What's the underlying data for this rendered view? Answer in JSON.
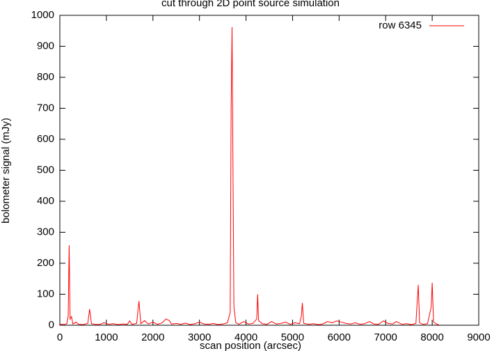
{
  "chart_data": {
    "type": "line",
    "title": "cut through 2D point source simulation",
    "xlabel": "scan position (arcsec)",
    "ylabel": "bolometer signal (mJy)",
    "x": [
      0,
      50,
      100,
      150,
      180,
      200,
      220,
      250,
      280,
      350,
      400,
      500,
      600,
      640,
      680,
      750,
      850,
      950,
      1050,
      1150,
      1250,
      1350,
      1450,
      1500,
      1550,
      1650,
      1700,
      1740,
      1820,
      1900,
      2000,
      2100,
      2200,
      2280,
      2350,
      2400,
      2500,
      2600,
      2700,
      2800,
      2900,
      3000,
      3100,
      3200,
      3300,
      3400,
      3500,
      3600,
      3660,
      3680,
      3700,
      3720,
      3740,
      3780,
      3850,
      3950,
      4050,
      4150,
      4230,
      4250,
      4270,
      4350,
      4450,
      4550,
      4650,
      4750,
      4850,
      4950,
      5050,
      5150,
      5190,
      5210,
      5240,
      5350,
      5450,
      5550,
      5650,
      5750,
      5850,
      5950,
      6050,
      6150,
      6250,
      6350,
      6450,
      6550,
      6650,
      6750,
      6850,
      6950,
      7050,
      7150,
      7230,
      7350,
      7450,
      7550,
      7650,
      7700,
      7730,
      7800,
      7900,
      7980,
      8000,
      8030,
      8100,
      8150
    ],
    "series": [
      {
        "name": "row 6345",
        "color": "#ff0000",
        "values": [
          2,
          3,
          2,
          5,
          30,
          258,
          20,
          28,
          4,
          10,
          3,
          2,
          6,
          52,
          5,
          3,
          2,
          8,
          3,
          5,
          2,
          4,
          3,
          14,
          3,
          6,
          78,
          5,
          15,
          4,
          10,
          3,
          8,
          20,
          15,
          4,
          6,
          3,
          7,
          2,
          5,
          10,
          4,
          3,
          6,
          2,
          4,
          8,
          40,
          700,
          962,
          500,
          60,
          8,
          3,
          12,
          4,
          6,
          20,
          100,
          15,
          5,
          3,
          12,
          4,
          6,
          10,
          3,
          8,
          5,
          30,
          72,
          6,
          3,
          5,
          2,
          4,
          12,
          8,
          14,
          10,
          6,
          4,
          8,
          3,
          5,
          12,
          4,
          3,
          14,
          6,
          4,
          12,
          3,
          5,
          2,
          6,
          130,
          8,
          3,
          5,
          60,
          137,
          10,
          3,
          1
        ]
      }
    ],
    "xlim": [
      0,
      9000
    ],
    "xticks": [
      0,
      1000,
      2000,
      3000,
      4000,
      5000,
      6000,
      7000,
      8000,
      9000
    ],
    "ylim": [
      0,
      1000
    ],
    "yticks": [
      0,
      100,
      200,
      300,
      400,
      500,
      600,
      700,
      800,
      900,
      1000
    ],
    "legend": "upper right"
  }
}
